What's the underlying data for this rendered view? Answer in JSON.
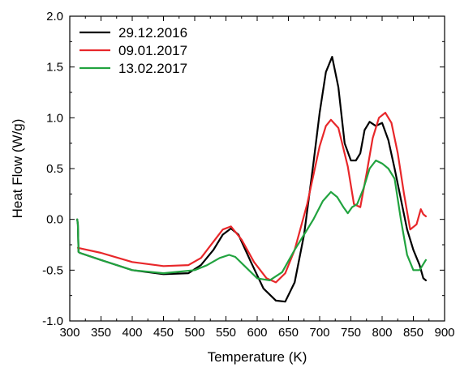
{
  "chart_data": {
    "type": "line",
    "title": "",
    "xlabel": "Temperature (K)",
    "ylabel": "Heat Flow (W/g)",
    "xlim": [
      300,
      900
    ],
    "ylim": [
      -1.0,
      2.0
    ],
    "xticks": [
      300,
      350,
      400,
      450,
      500,
      550,
      600,
      650,
      700,
      750,
      800,
      850,
      900
    ],
    "yticks": [
      -1.0,
      -0.5,
      0.0,
      0.5,
      1.0,
      1.5,
      2.0
    ],
    "ytick_labels": [
      "-1.0",
      "-0.5",
      "0.0",
      "0.5",
      "1.0",
      "1.5",
      "2.0"
    ],
    "grid": false,
    "legend_position": "top-left",
    "series": [
      {
        "name": "29.12.2016",
        "color": "#000000",
        "x": [
          312,
          313,
          314,
          316,
          350,
          400,
          450,
          490,
          510,
          530,
          545,
          558,
          570,
          590,
          610,
          630,
          645,
          660,
          675,
          690,
          700,
          710,
          720,
          730,
          740,
          750,
          758,
          765,
          772,
          780,
          790,
          800,
          810,
          820,
          830,
          840,
          850,
          860,
          866,
          870
        ],
        "y": [
          0.0,
          -0.05,
          -0.32,
          -0.33,
          -0.4,
          -0.5,
          -0.54,
          -0.53,
          -0.45,
          -0.3,
          -0.15,
          -0.09,
          -0.15,
          -0.42,
          -0.68,
          -0.8,
          -0.81,
          -0.62,
          -0.15,
          0.55,
          1.05,
          1.45,
          1.6,
          1.3,
          0.75,
          0.58,
          0.58,
          0.65,
          0.88,
          0.96,
          0.92,
          0.95,
          0.78,
          0.5,
          0.2,
          -0.1,
          -0.3,
          -0.45,
          -0.58,
          -0.6
        ]
      },
      {
        "name": "09.01.2017",
        "color": "#e8272a",
        "x": [
          313,
          350,
          400,
          450,
          490,
          510,
          530,
          545,
          558,
          575,
          595,
          615,
          630,
          645,
          660,
          680,
          700,
          710,
          718,
          730,
          745,
          755,
          765,
          775,
          785,
          795,
          805,
          815,
          825,
          835,
          845,
          855,
          862,
          866,
          870
        ],
        "y": [
          -0.28,
          -0.33,
          -0.42,
          -0.46,
          -0.45,
          -0.38,
          -0.22,
          -0.1,
          -0.07,
          -0.2,
          -0.42,
          -0.58,
          -0.62,
          -0.53,
          -0.3,
          0.15,
          0.72,
          0.92,
          0.98,
          0.9,
          0.52,
          0.15,
          0.12,
          0.45,
          0.8,
          1.0,
          1.05,
          0.95,
          0.65,
          0.25,
          -0.1,
          -0.05,
          0.1,
          0.05,
          0.03
        ]
      },
      {
        "name": "13.02.2017",
        "color": "#21a33f",
        "x": [
          312,
          313,
          314,
          316,
          350,
          400,
          450,
          500,
          520,
          540,
          555,
          565,
          580,
          600,
          620,
          640,
          660,
          675,
          690,
          705,
          718,
          728,
          738,
          745,
          752,
          760,
          770,
          780,
          790,
          800,
          810,
          820,
          830,
          840,
          850,
          860,
          870
        ],
        "y": [
          0.0,
          -0.05,
          -0.32,
          -0.33,
          -0.4,
          -0.5,
          -0.53,
          -0.5,
          -0.45,
          -0.38,
          -0.35,
          -0.37,
          -0.46,
          -0.58,
          -0.6,
          -0.52,
          -0.3,
          -0.15,
          0.0,
          0.18,
          0.27,
          0.22,
          0.12,
          0.06,
          0.12,
          0.15,
          0.3,
          0.5,
          0.58,
          0.55,
          0.5,
          0.4,
          0.0,
          -0.35,
          -0.5,
          -0.5,
          -0.4
        ]
      }
    ]
  }
}
